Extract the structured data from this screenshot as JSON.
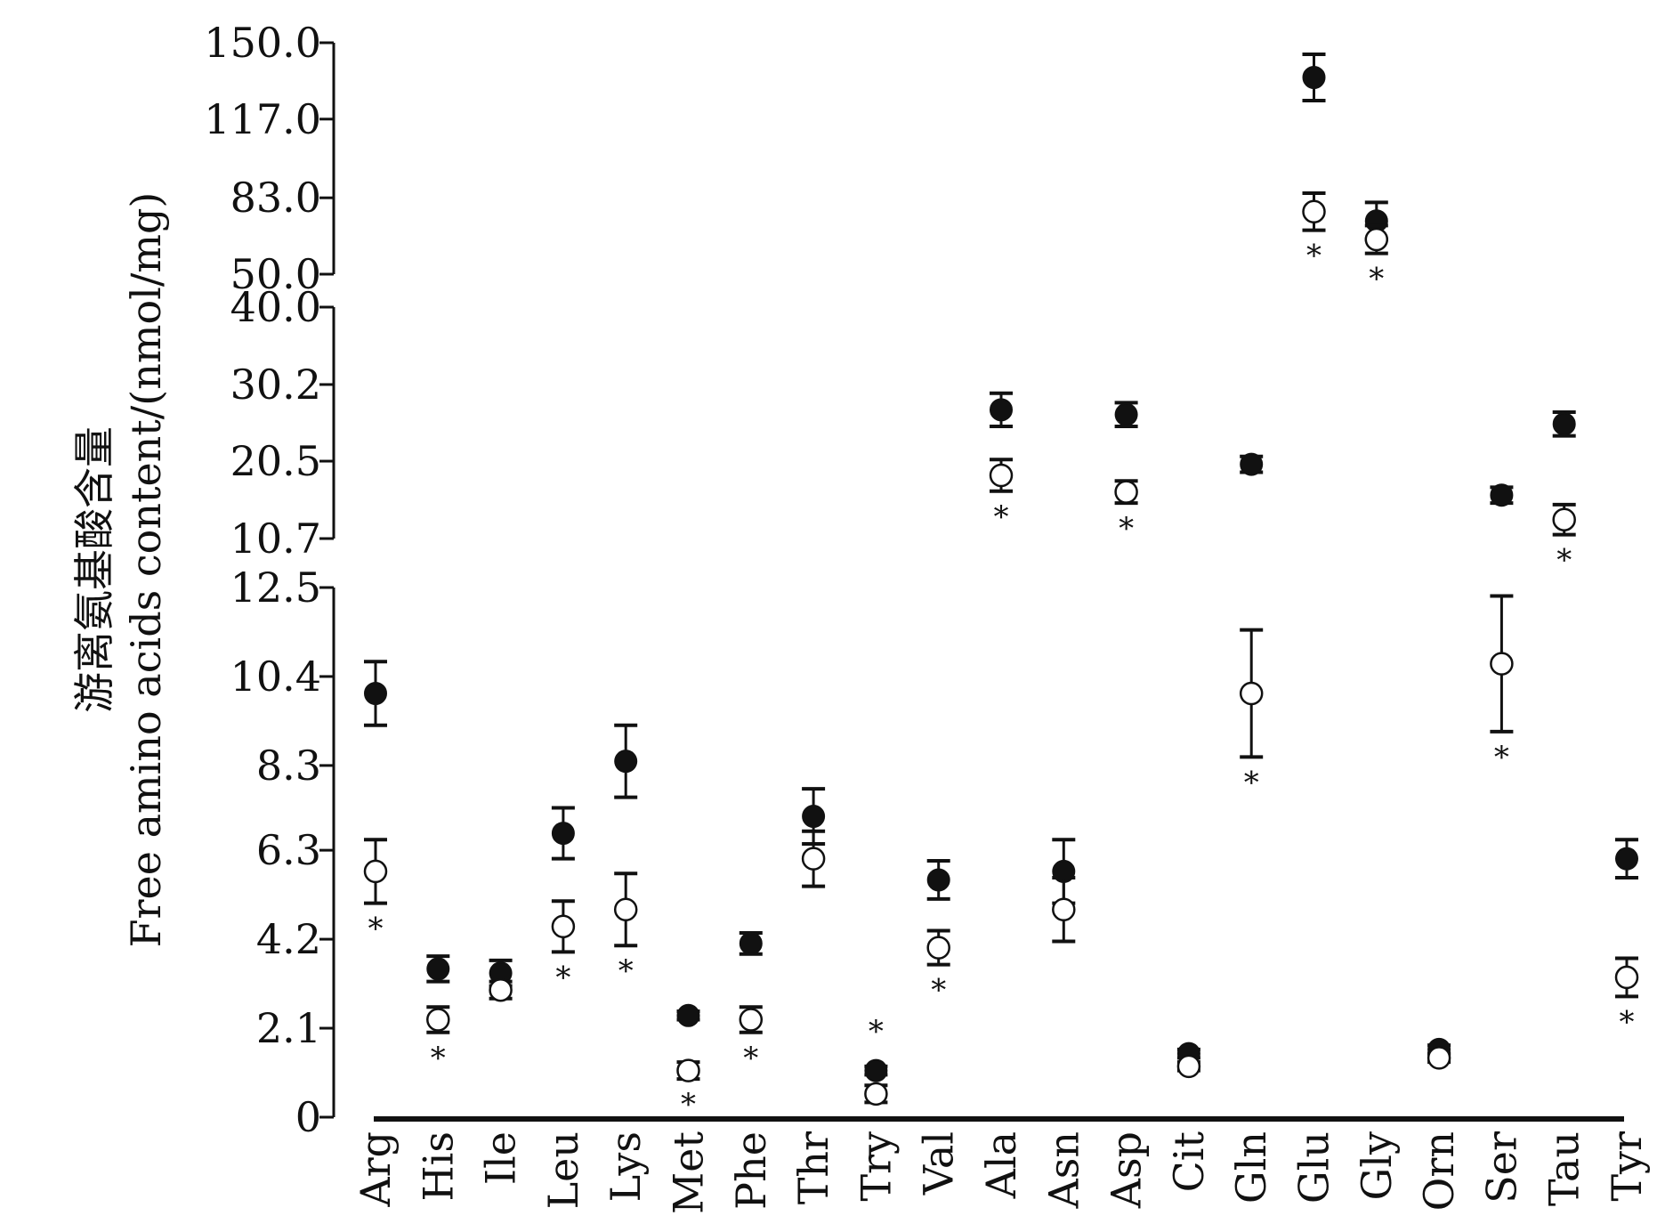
{
  "chart_data": {
    "type": "scatter",
    "ylabel_cn": "游离氨基酸含量",
    "ylabel_en": "Free amino acids content/(nmol/mg)",
    "categories": [
      "Arg",
      "His",
      "Ile",
      "Leu",
      "Lys",
      "Met",
      "Phe",
      "Thr",
      "Try",
      "Val",
      "Ala",
      "Asn",
      "Asp",
      "Cit",
      "Gln",
      "Glu",
      "Gly",
      "Orn",
      "Ser",
      "Tau",
      "Tyr"
    ],
    "y_segments": [
      {
        "range": [
          0,
          12.5
        ],
        "ticks": [
          "0",
          "2.1",
          "4.2",
          "6.3",
          "8.3",
          "10.4",
          "12.5"
        ]
      },
      {
        "range": [
          10.7,
          40.0
        ],
        "ticks": [
          "10.7",
          "20.5",
          "30.2",
          "40.0"
        ]
      },
      {
        "range": [
          50.0,
          150.0
        ],
        "ticks": [
          "50.0",
          "83.0",
          "117.0",
          "150.0"
        ]
      }
    ],
    "series": [
      {
        "marker": "filled",
        "values": [
          10.0,
          3.5,
          3.4,
          6.7,
          8.4,
          2.4,
          4.1,
          7.1,
          1.1,
          5.6,
          27.0,
          5.8,
          26.4,
          1.5,
          20.1,
          135.0,
          73.0,
          1.6,
          16.2,
          25.2,
          6.1
        ],
        "errors": [
          0.75,
          0.3,
          0.3,
          0.6,
          0.85,
          0.1,
          0.25,
          0.65,
          0.1,
          0.45,
          2.1,
          0.75,
          1.5,
          0.1,
          1.0,
          10.0,
          8.0,
          0.1,
          1.0,
          1.5,
          0.45
        ]
      },
      {
        "marker": "open",
        "values": [
          5.8,
          2.3,
          3.0,
          4.5,
          4.9,
          1.1,
          2.3,
          6.1,
          0.55,
          4.0,
          18.7,
          4.9,
          16.6,
          1.2,
          10.0,
          77.0,
          65.0,
          1.4,
          10.7,
          13.1,
          3.3
        ],
        "errors": [
          0.75,
          0.3,
          0.2,
          0.6,
          0.85,
          0.2,
          0.3,
          0.65,
          0.2,
          0.4,
          2.0,
          0.75,
          1.4,
          0.1,
          1.5,
          8.0,
          6.0,
          0.1,
          1.6,
          1.9,
          0.45
        ]
      }
    ],
    "significance_marker": "*",
    "significant_categories": [
      "Arg",
      "His",
      "Leu",
      "Lys",
      "Met",
      "Phe",
      "Try",
      "Val",
      "Ala",
      "Asp",
      "Gln",
      "Glu",
      "Gly",
      "Ser",
      "Tau",
      "Tyr"
    ]
  }
}
